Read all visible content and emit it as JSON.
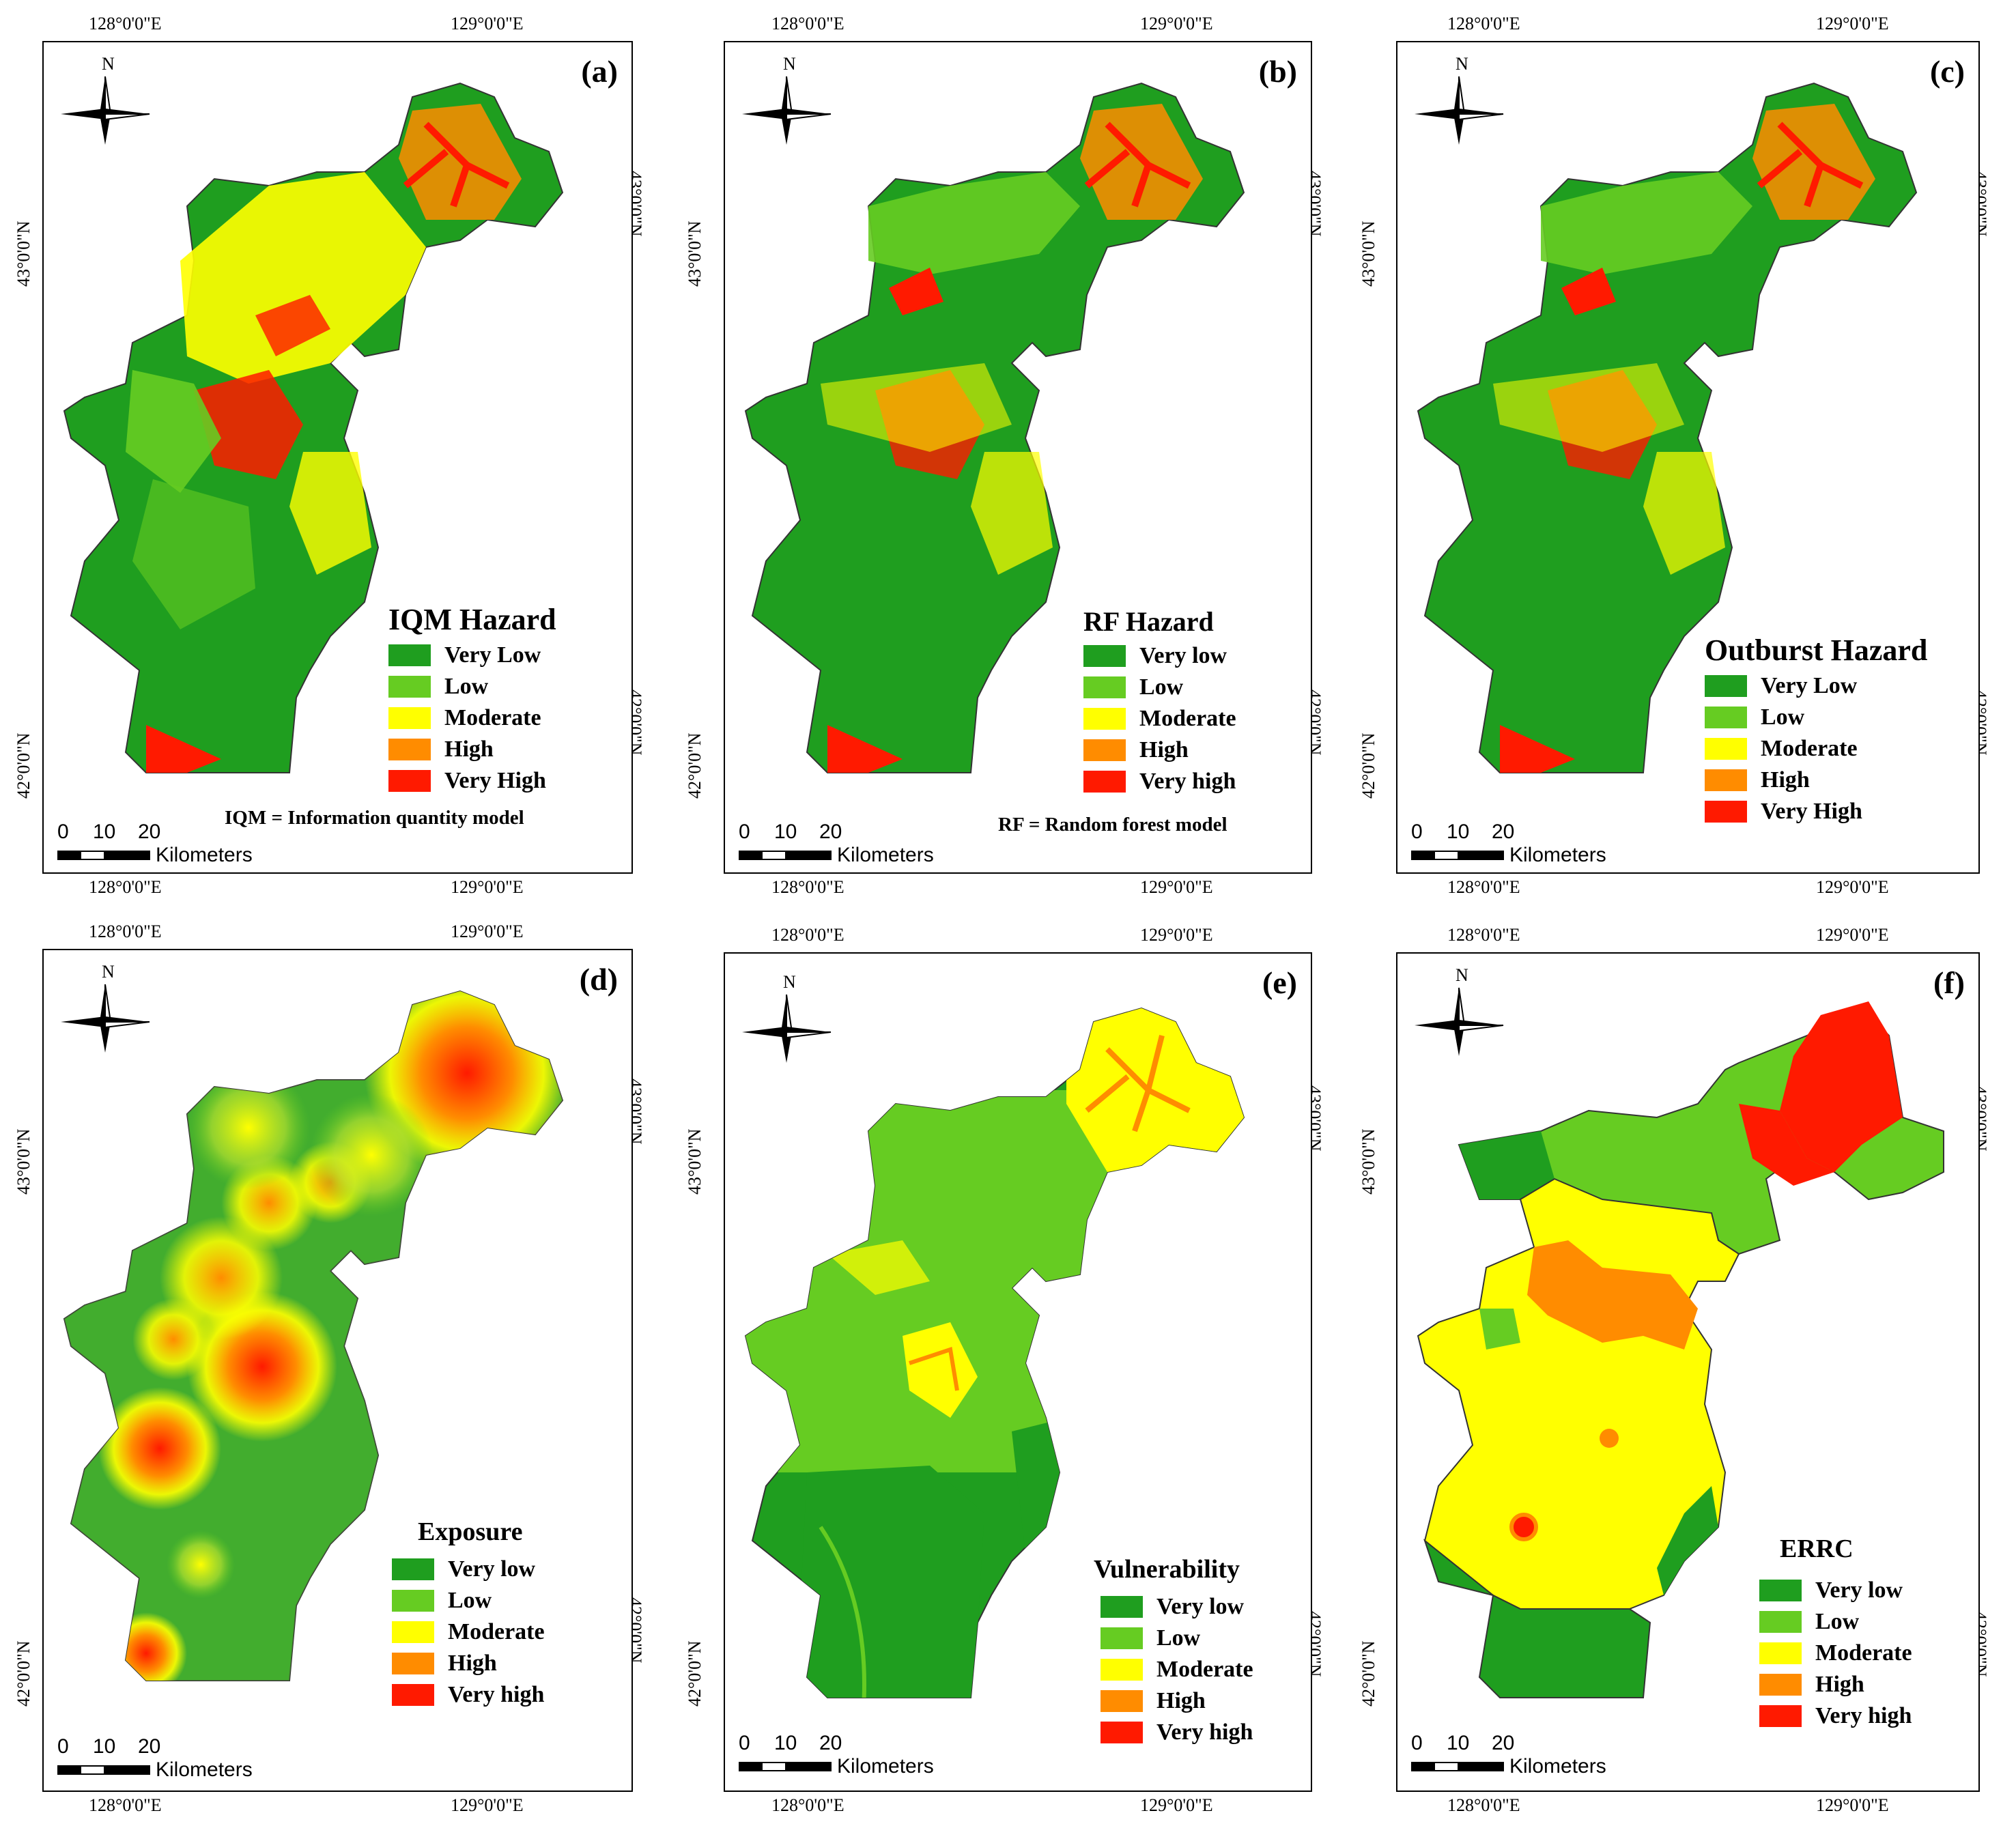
{
  "coords": {
    "lon_left": "128°0'0\"E",
    "lon_right": "129°0'0\"E",
    "lat_top": "43°0'0\"N",
    "lat_bottom": "42°0'0\"N"
  },
  "north_label": "N",
  "scalebar": {
    "ticks": [
      "0",
      "10",
      "20"
    ],
    "unit": "Kilometers"
  },
  "colors": {
    "very_low": "#1f9e1f",
    "low": "#66cc22",
    "moderate": "#ffff00",
    "high": "#ff8c00",
    "very_high": "#ff1a00"
  },
  "panels": [
    {
      "id": "a",
      "label": "(a)",
      "legend_title": "IQM Hazard",
      "classes": [
        "Very Low",
        "Low",
        "Moderate",
        "High",
        "Very High"
      ],
      "footnote": "IQM = Information quantity model"
    },
    {
      "id": "b",
      "label": "(b)",
      "legend_title": "RF Hazard",
      "classes": [
        "Very low",
        "Low",
        "Moderate",
        "High",
        "Very high"
      ],
      "footnote": "RF = Random forest model"
    },
    {
      "id": "c",
      "label": "(c)",
      "legend_title": "Outburst Hazard",
      "classes": [
        "Very Low",
        "Low",
        "Moderate",
        "High",
        "Very High"
      ],
      "footnote": ""
    },
    {
      "id": "d",
      "label": "(d)",
      "legend_title": "Exposure",
      "classes": [
        "Very low",
        "Low",
        "Moderate",
        "High",
        "Very high"
      ],
      "footnote": ""
    },
    {
      "id": "e",
      "label": "(e)",
      "legend_title": "Vulnerability",
      "classes": [
        "Very low",
        "Low",
        "Moderate",
        "High",
        "Very high"
      ],
      "footnote": ""
    },
    {
      "id": "f",
      "label": "(f)",
      "legend_title": "ERRC",
      "classes": [
        "Very low",
        "Low",
        "Moderate",
        "High",
        "Very high"
      ],
      "footnote": ""
    }
  ]
}
